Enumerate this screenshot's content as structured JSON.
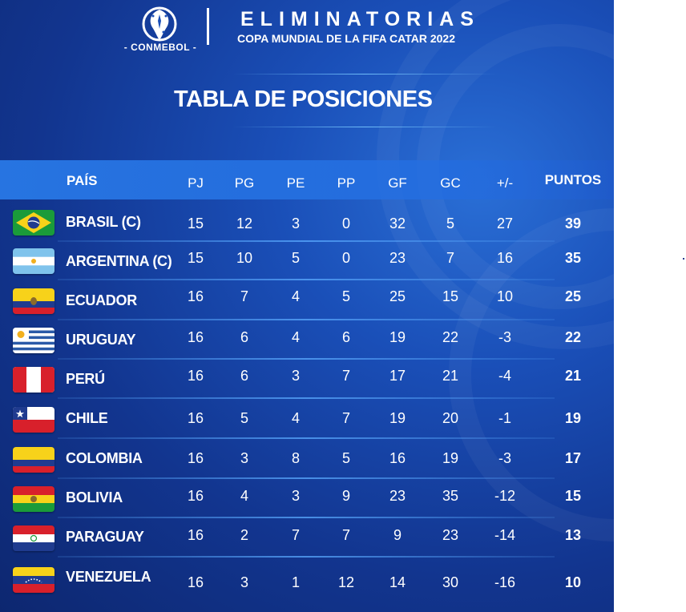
{
  "header": {
    "logo_text": "- CONMEBOL -",
    "title": "ELIMINATORIAS",
    "subtitle": "COPA MUNDIAL DE LA FIFA CATAR 2022"
  },
  "page_title": "TABLA DE POSICIONES",
  "columns": {
    "team": "PAÍS",
    "pj": "PJ",
    "pg": "PG",
    "pe": "PE",
    "pp": "PP",
    "gf": "GF",
    "gc": "GC",
    "dif": "+/-",
    "pts": "PUNTOS"
  },
  "rows": [
    {
      "team": "BRASIL (C)",
      "flag": "brazil-flag-icon",
      "pj": "15",
      "pg": "12",
      "pe": "3",
      "pp": "0",
      "gf": "32",
      "gc": "5",
      "dif": "27",
      "pts": "39"
    },
    {
      "team": "ARGENTINA (C)",
      "flag": "argentina-flag-icon",
      "pj": "15",
      "pg": "10",
      "pe": "5",
      "pp": "0",
      "gf": "23",
      "gc": "7",
      "dif": "16",
      "pts": "35"
    },
    {
      "team": "ECUADOR",
      "flag": "ecuador-flag-icon",
      "pj": "16",
      "pg": "7",
      "pe": "4",
      "pp": "5",
      "gf": "25",
      "gc": "15",
      "dif": "10",
      "pts": "25"
    },
    {
      "team": "URUGUAY",
      "flag": "uruguay-flag-icon",
      "pj": "16",
      "pg": "6",
      "pe": "4",
      "pp": "6",
      "gf": "19",
      "gc": "22",
      "dif": "-3",
      "pts": "22"
    },
    {
      "team": "PERÚ",
      "flag": "peru-flag-icon",
      "pj": "16",
      "pg": "6",
      "pe": "3",
      "pp": "7",
      "gf": "17",
      "gc": "21",
      "dif": "-4",
      "pts": "21"
    },
    {
      "team": "CHILE",
      "flag": "chile-flag-icon",
      "pj": "16",
      "pg": "5",
      "pe": "4",
      "pp": "7",
      "gf": "19",
      "gc": "20",
      "dif": "-1",
      "pts": "19"
    },
    {
      "team": "COLOMBIA",
      "flag": "colombia-flag-icon",
      "pj": "16",
      "pg": "3",
      "pe": "8",
      "pp": "5",
      "gf": "16",
      "gc": "19",
      "dif": "-3",
      "pts": "17"
    },
    {
      "team": "BOLIVIA",
      "flag": "bolivia-flag-icon",
      "pj": "16",
      "pg": "4",
      "pe": "3",
      "pp": "9",
      "gf": "23",
      "gc": "35",
      "dif": "-12",
      "pts": "15"
    },
    {
      "team": "PARAGUAY",
      "flag": "paraguay-flag-icon",
      "pj": "16",
      "pg": "2",
      "pe": "7",
      "pp": "7",
      "gf": "9",
      "gc": "23",
      "dif": "-14",
      "pts": "13"
    },
    {
      "team": "VENEZUELA",
      "flag": "venezuela-flag-icon",
      "pj": "16",
      "pg": "3",
      "pe": "1",
      "pp": "12",
      "gf": "14",
      "gc": "30",
      "dif": "-16",
      "pts": "10"
    }
  ],
  "colors": {
    "background_dark": "#0d2770",
    "background_light": "#2a6fd6",
    "header_band": "#2878e6",
    "text": "#ffffff"
  }
}
